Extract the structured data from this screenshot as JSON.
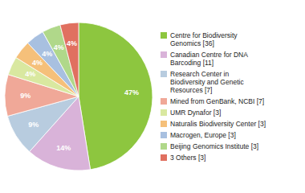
{
  "chart_data": {
    "type": "pie",
    "categories": [
      "Centre for Biodiversity\nGenomics [36]",
      "Canadian Centre for DNA\nBarcoding [11]",
      "Research Center in\nBiodiversity and Genetic\nResources [7]",
      "Mined from GenBank, NCBI [7]",
      "UMR Dynafor [3]",
      "Naturalis Biodiversity Center [3]",
      "Macrogen, Europe [3]",
      "Beijing Genomics Institute [3]",
      "3 Others [3]"
    ],
    "values": [
      47,
      14,
      9,
      9,
      4,
      4,
      4,
      4,
      4
    ],
    "value_labels": [
      "47%",
      "14%",
      "9%",
      "9%",
      "4%",
      "4%",
      "4%",
      "4%",
      "4%"
    ],
    "data_labels": true,
    "legend": "right",
    "colors": [
      "#8dc63f",
      "#d9b3d9",
      "#b8ccdf",
      "#f0a898",
      "#d9e8a0",
      "#f5c07a",
      "#a8c0e0",
      "#b0d88a",
      "#e07060"
    ]
  }
}
